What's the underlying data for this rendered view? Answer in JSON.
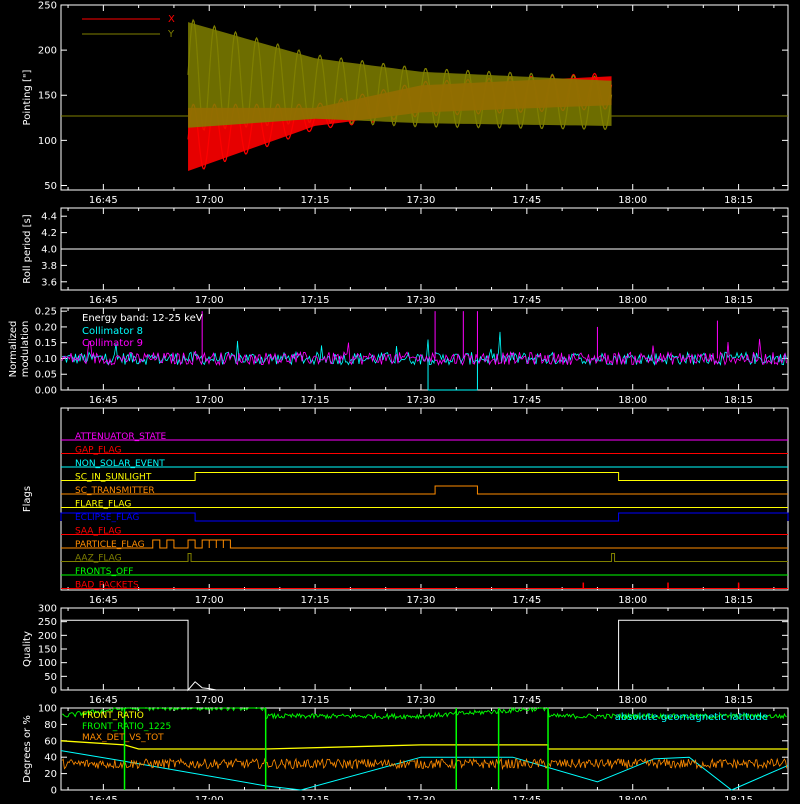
{
  "colors": {
    "x_series": "#ff0000",
    "y_series": "#808000",
    "white": "#ffffff",
    "cyan": "#00ffff",
    "magenta": "#ff00ff",
    "green": "#00ff00",
    "orange": "#ff8c00",
    "yellow": "#ffff00",
    "blue": "#0000ff"
  },
  "time_ticks": [
    "16:45",
    "17:00",
    "17:15",
    "17:30",
    "17:45",
    "18:00",
    "18:15"
  ],
  "chart_data": [
    {
      "type": "line",
      "ylabel": "Pointing [\"]",
      "ylim": [
        45,
        250
      ],
      "yticks": [
        "250",
        "200",
        "150",
        "100",
        "50"
      ],
      "xlim": [
        "16:39",
        "18:22"
      ],
      "legend": [
        "X",
        "Y"
      ],
      "series": [
        {
          "name": "X",
          "points": [
            [
              "16:39",
              127
            ],
            [
              "16:57",
              127
            ],
            [
              "16:57",
              61
            ],
            [
              "17:15",
              118
            ],
            [
              "17:30",
              143
            ],
            [
              "17:45",
              146
            ],
            [
              "17:57",
              146
            ],
            [
              "17:57",
              127
            ],
            [
              "18:22",
              127
            ]
          ],
          "band_low": [
            [
              "16:57",
              62
            ],
            [
              "17:15",
              112
            ],
            [
              "17:30",
              127
            ],
            [
              "17:57",
              135
            ]
          ],
          "band_high": [
            [
              "16:57",
              140
            ],
            [
              "17:15",
              140
            ],
            [
              "17:30",
              165
            ],
            [
              "17:57",
              175
            ]
          ]
        },
        {
          "name": "Y",
          "points": [
            [
              "16:39",
              127
            ],
            [
              "16:57",
              127
            ],
            [
              "16:57",
              232
            ],
            [
              "17:15",
              145
            ],
            [
              "17:30",
              142
            ],
            [
              "17:57",
              140
            ],
            [
              "17:57",
              127
            ],
            [
              "18:22",
              127
            ]
          ],
          "band_low": [
            [
              "16:57",
              110
            ],
            [
              "17:15",
              120
            ],
            [
              "17:30",
              115
            ],
            [
              "17:57",
              112
            ]
          ],
          "band_high": [
            [
              "16:57",
              235
            ],
            [
              "17:15",
              195
            ],
            [
              "17:30",
              180
            ],
            [
              "17:57",
              170
            ]
          ]
        }
      ]
    },
    {
      "type": "line",
      "ylabel": "Roll period [s]",
      "ylim": [
        3.5,
        4.5
      ],
      "yticks": [
        "4.4",
        "4.2",
        "4.0",
        "3.8",
        "3.6"
      ],
      "series": [
        {
          "name": "",
          "points": [
            [
              "16:39",
              4.0
            ],
            [
              "18:22",
              4.0
            ]
          ]
        }
      ]
    },
    {
      "type": "line",
      "ylabel": "Normalized modulation",
      "ylim": [
        0.0,
        0.26
      ],
      "yticks": [
        "0.25",
        "0.20",
        "0.15",
        "0.10",
        "0.05",
        "0.00"
      ],
      "annotation": "Energy band: 12-25 keV",
      "legend": [
        "Collimator 8",
        "Collimator 9"
      ],
      "series": [
        {
          "name": "Collimator 8",
          "baseline": 0.1,
          "spread": 0.02,
          "dips": [
            [
              "17:31",
              0.0
            ],
            [
              "17:38",
              0.0
            ]
          ]
        },
        {
          "name": "Collimator 9",
          "baseline": 0.1,
          "spread": 0.02,
          "spikes": [
            [
              "16:59",
              0.25
            ],
            [
              "17:32",
              0.25
            ],
            [
              "17:36",
              0.25
            ],
            [
              "17:38",
              0.25
            ],
            [
              "17:55",
              0.2
            ],
            [
              "18:12",
              0.22
            ]
          ]
        }
      ]
    },
    {
      "type": "line",
      "ylabel": "Flags",
      "flags": [
        {
          "label": "ATTENUATOR_STATE",
          "color": "#ff00ff"
        },
        {
          "label": "GAP_FLAG",
          "color": "#ff0000"
        },
        {
          "label": "NON_SOLAR_EVENT",
          "color": "#00ffff"
        },
        {
          "label": "SC_IN_SUNLIGHT",
          "color": "#ffff00",
          "high": [
            [
              "16:58",
              "17:58"
            ]
          ]
        },
        {
          "label": "SC_TRANSMITTER",
          "color": "#ff8c00",
          "high": [
            [
              "17:32",
              "17:38"
            ]
          ]
        },
        {
          "label": "FLARE_FLAG",
          "color": "#ffff00"
        },
        {
          "label": "ECLIPSE_FLAG",
          "color": "#0000ff",
          "high": [
            [
              "16:39",
              "16:58"
            ],
            [
              "17:58",
              "18:22"
            ]
          ]
        },
        {
          "label": "SAA_FLAG",
          "color": "#ff0000"
        },
        {
          "label": "PARTICLE_FLAG",
          "color": "#ff8c00",
          "high": [
            [
              "16:52",
              "16:53"
            ],
            [
              "16:54",
              "16:55"
            ],
            [
              "16:57",
              "16:58"
            ],
            [
              "16:59",
              "17:00"
            ],
            [
              "17:00",
              "17:01"
            ],
            [
              "17:01",
              "17:02"
            ],
            [
              "17:02",
              "17:03"
            ]
          ]
        },
        {
          "label": "AAZ_FLAG",
          "color": "#808000",
          "high": [
            [
              "16:57",
              "16:57"
            ],
            [
              "17:57",
              "17:57"
            ]
          ]
        },
        {
          "label": "FRONTS_OFF",
          "color": "#00ff00"
        },
        {
          "label": "BAD_PACKETS",
          "color": "#ff0000",
          "spikes": [
            "17:53",
            "18:05",
            "18:15"
          ]
        }
      ]
    },
    {
      "type": "line",
      "ylabel": "Quality",
      "ylim": [
        0,
        300
      ],
      "yticks": [
        "300",
        "250",
        "200",
        "150",
        "100",
        "50",
        "0"
      ],
      "series": [
        {
          "name": "",
          "points": [
            [
              "16:39",
              255
            ],
            [
              "16:57",
              255
            ],
            [
              "16:57",
              0
            ],
            [
              "16:58",
              30
            ],
            [
              "16:59",
              8
            ],
            [
              "17:00",
              5
            ],
            [
              "17:01",
              0
            ],
            [
              "17:58",
              0
            ],
            [
              "17:58",
              255
            ],
            [
              "18:22",
              255
            ]
          ]
        }
      ]
    },
    {
      "type": "line",
      "ylabel": "Degrees or %",
      "ylim": [
        0,
        100
      ],
      "yticks": [
        "100",
        "80",
        "60",
        "40",
        "20",
        "0"
      ],
      "legend": [
        "FRONT_RATIO",
        "FRONT_RATIO_1225",
        "MAX_DET_VS_TOT"
      ],
      "annotation": "absolute geomagnetic latitude",
      "series": [
        {
          "name": "FRONT_RATIO",
          "color": "#ffff00",
          "points": [
            [
              "16:39",
              60
            ],
            [
              "16:48",
              55
            ],
            [
              "16:50",
              50
            ],
            [
              "17:08",
              50
            ],
            [
              "17:30",
              55
            ],
            [
              "17:48",
              55
            ],
            [
              "17:48",
              50
            ],
            [
              "18:22",
              50
            ]
          ]
        },
        {
          "name": "FRONT_RATIO_1225",
          "color": "#00ff00",
          "points": [
            [
              "16:39",
              90
            ],
            [
              "16:48",
              100
            ],
            [
              "17:08",
              100
            ],
            [
              "17:08",
              90
            ],
            [
              "17:30",
              90
            ],
            [
              "17:48",
              100
            ],
            [
              "17:48",
              90
            ],
            [
              "18:22",
              90
            ]
          ]
        },
        {
          "name": "MAX_DET_VS_TOT",
          "color": "#ff8c00",
          "baseline": 32,
          "spread": 6
        },
        {
          "name": "absolute geomagnetic latitude",
          "color": "#00ffff",
          "points": [
            [
              "16:39",
              48
            ],
            [
              "16:48",
              35
            ],
            [
              "17:08",
              5
            ],
            [
              "17:13",
              0
            ],
            [
              "17:30",
              40
            ],
            [
              "17:43",
              40
            ],
            [
              "17:55",
              10
            ],
            [
              "18:03",
              38
            ],
            [
              "18:08",
              40
            ],
            [
              "18:14",
              0
            ],
            [
              "18:22",
              30
            ]
          ]
        }
      ]
    }
  ]
}
